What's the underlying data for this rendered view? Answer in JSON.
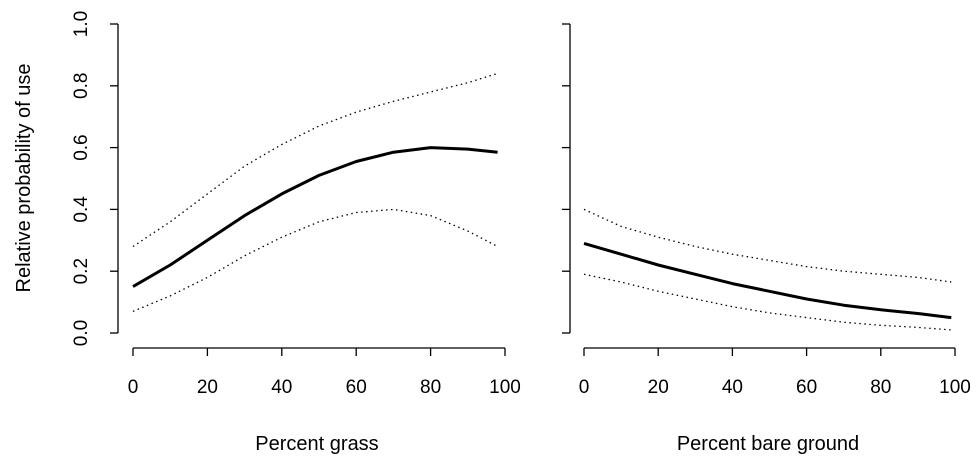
{
  "figure": {
    "ylabel": "Relative probability of use"
  },
  "chart_data": [
    {
      "type": "line",
      "xlabel": "Percent grass",
      "ylabel": "Relative probability of use",
      "xlim": [
        0,
        100
      ],
      "ylim": [
        0,
        1
      ],
      "xticks": [
        0,
        20,
        40,
        60,
        80,
        100
      ],
      "xtick_labels": [
        "0",
        "20",
        "40",
        "60",
        "80",
        "100"
      ],
      "yticks": [
        0,
        0.2,
        0.4,
        0.6,
        0.8,
        1.0
      ],
      "ytick_labels": [
        "0.0",
        "0.2",
        "0.4",
        "0.6",
        "0.8",
        "1.0"
      ],
      "x": [
        0,
        10,
        20,
        30,
        40,
        50,
        60,
        70,
        80,
        90,
        98
      ],
      "series": [
        {
          "style": "solid",
          "values": [
            0.15,
            0.22,
            0.3,
            0.38,
            0.45,
            0.51,
            0.555,
            0.585,
            0.6,
            0.595,
            0.585
          ]
        },
        {
          "style": "dotted-upper",
          "values": [
            0.28,
            0.36,
            0.45,
            0.54,
            0.61,
            0.67,
            0.715,
            0.75,
            0.78,
            0.81,
            0.84
          ]
        },
        {
          "style": "dotted-lower",
          "values": [
            0.07,
            0.12,
            0.18,
            0.25,
            0.31,
            0.36,
            0.39,
            0.4,
            0.38,
            0.33,
            0.28
          ]
        }
      ]
    },
    {
      "type": "line",
      "xlabel": "Percent bare ground",
      "xlim": [
        0,
        100
      ],
      "ylim": [
        0,
        1
      ],
      "xticks": [
        0,
        20,
        40,
        60,
        80,
        100
      ],
      "xtick_labels": [
        "0",
        "20",
        "40",
        "60",
        "80",
        "100"
      ],
      "yticks": [
        0,
        0.2,
        0.4,
        0.6,
        0.8,
        1.0
      ],
      "x": [
        0,
        10,
        20,
        30,
        40,
        50,
        60,
        70,
        80,
        90,
        99
      ],
      "series": [
        {
          "style": "solid",
          "values": [
            0.29,
            0.255,
            0.22,
            0.19,
            0.16,
            0.135,
            0.11,
            0.09,
            0.075,
            0.063,
            0.05
          ]
        },
        {
          "style": "dotted-upper",
          "values": [
            0.4,
            0.345,
            0.31,
            0.28,
            0.255,
            0.235,
            0.215,
            0.2,
            0.19,
            0.18,
            0.165
          ]
        },
        {
          "style": "dotted-lower",
          "values": [
            0.19,
            0.165,
            0.135,
            0.11,
            0.085,
            0.065,
            0.05,
            0.035,
            0.025,
            0.018,
            0.01
          ]
        }
      ]
    }
  ]
}
